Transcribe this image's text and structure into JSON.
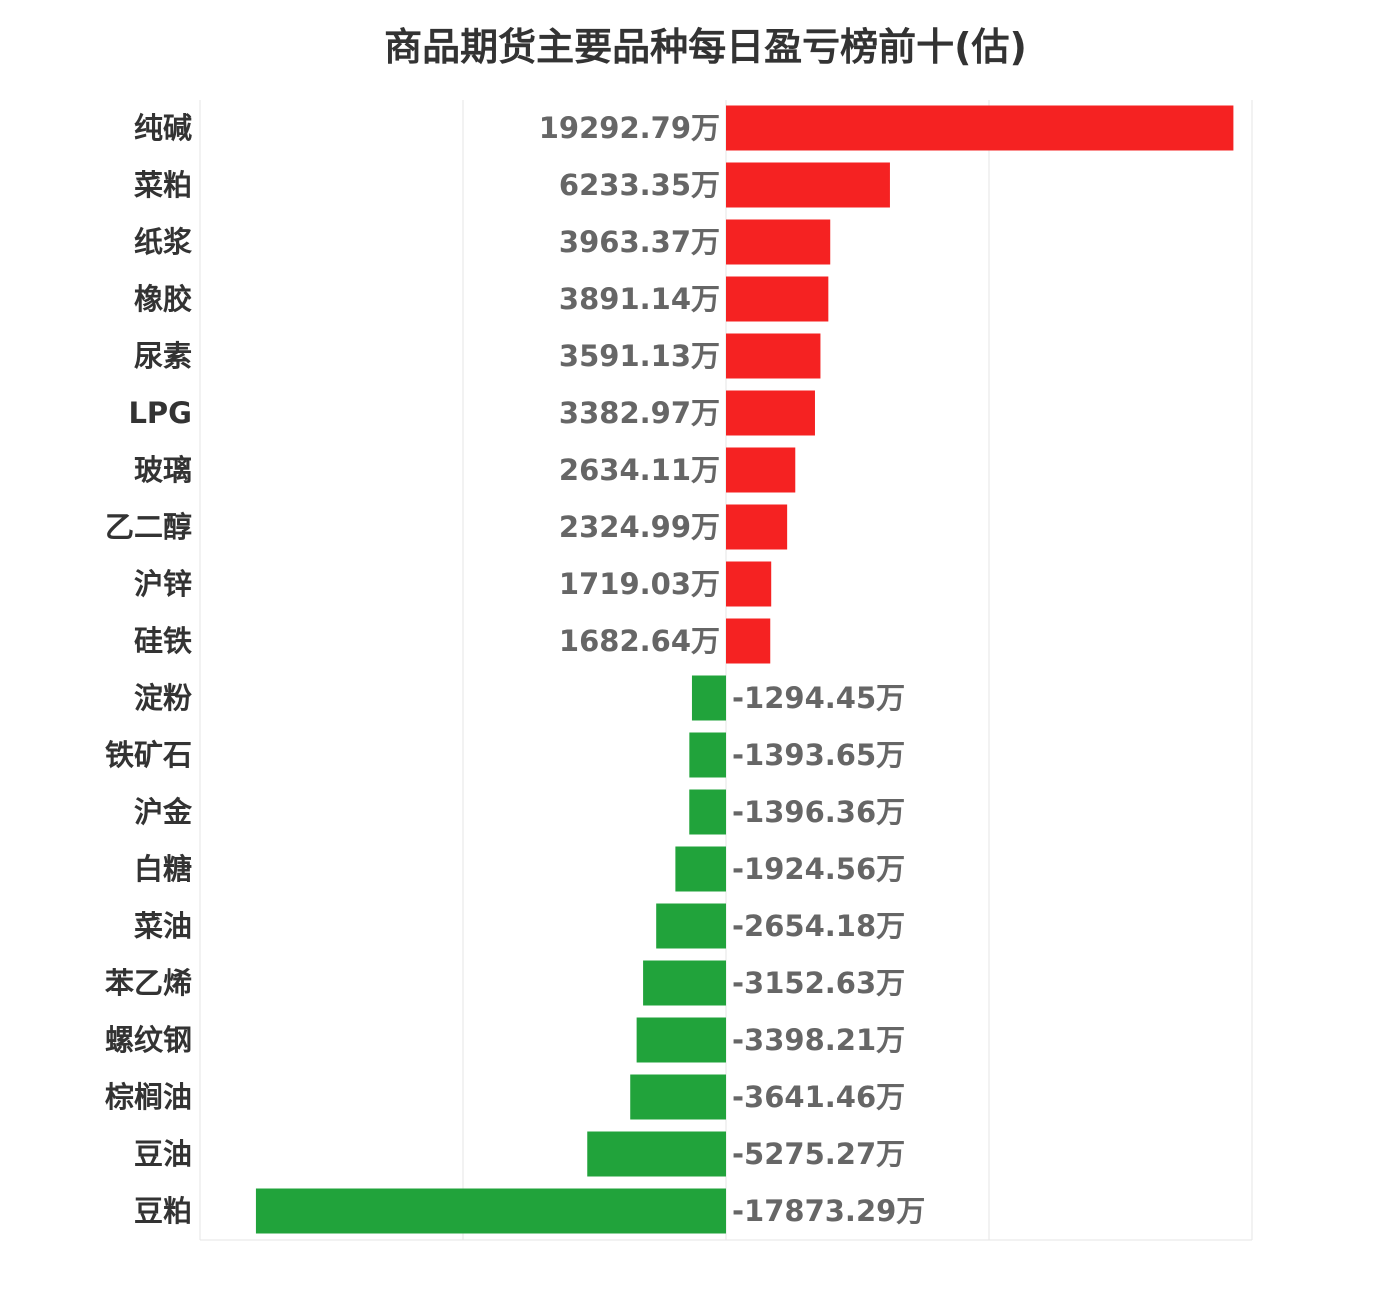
{
  "chart_data": {
    "type": "bar",
    "orientation": "horizontal",
    "title": "商品期货主要品种每日盈亏榜前十(估)",
    "unit_suffix": "万",
    "categories": [
      "纯碱",
      "菜粕",
      "纸浆",
      "橡胶",
      "尿素",
      "LPG",
      "玻璃",
      "乙二醇",
      "沪锌",
      "硅铁",
      "淀粉",
      "铁矿石",
      "沪金",
      "白糖",
      "菜油",
      "苯乙烯",
      "螺纹钢",
      "棕榈油",
      "豆油",
      "豆粕"
    ],
    "values": [
      19292.79,
      6233.35,
      3963.37,
      3891.14,
      3591.13,
      3382.97,
      2634.11,
      2324.99,
      1719.03,
      1682.64,
      -1294.45,
      -1393.65,
      -1396.36,
      -1924.56,
      -2654.18,
      -3152.63,
      -3398.21,
      -3641.46,
      -5275.27,
      -17873.29
    ],
    "value_labels": [
      "19292.79万",
      "6233.35万",
      "3963.37万",
      "3891.14万",
      "3591.13万",
      "3382.97万",
      "2634.11万",
      "2324.99万",
      "1719.03万",
      "1682.64万",
      "-1294.45万",
      "-1393.65万",
      "-1396.36万",
      "-1924.56万",
      "-2654.18万",
      "-3152.63万",
      "-3398.21万",
      "-3641.46万",
      "-5275.27万",
      "-17873.29万"
    ],
    "xlim": [
      -20000,
      20000
    ],
    "grid": true,
    "colors": {
      "positive": "#f52222",
      "negative": "#21a33b",
      "grid": "#e6e6e6"
    }
  }
}
